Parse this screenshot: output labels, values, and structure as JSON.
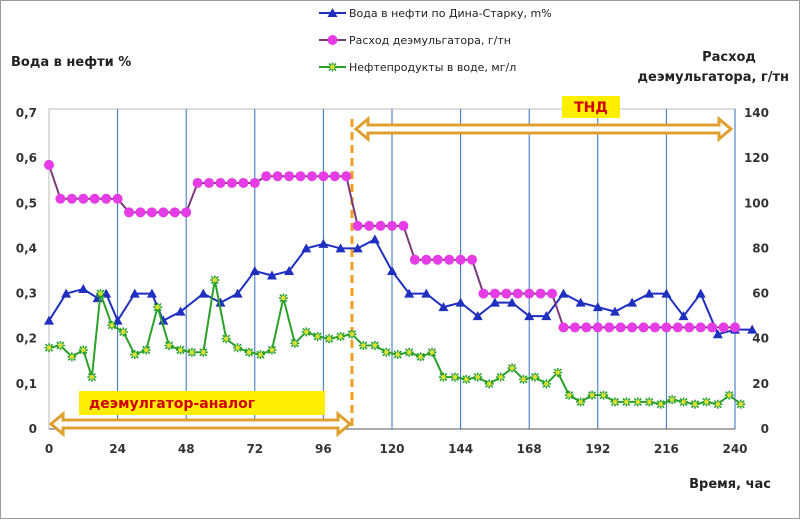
{
  "chart_data": {
    "type": "line",
    "xlabel": "Время, час",
    "ylabel_left": "Вода в нефти  %",
    "ylabel_right": [
      "Расход",
      "деэмульгатора, г/тн"
    ],
    "x_ticks": [
      0,
      24,
      48,
      72,
      96,
      120,
      144,
      168,
      192,
      216,
      240
    ],
    "y_left_ticks": [
      "0",
      "0,1",
      "0,2",
      "0,3",
      "0,4",
      "0,5",
      "0,6",
      "0,7"
    ],
    "y_right_ticks": [
      "0",
      "20",
      "40",
      "60",
      "80",
      "100",
      "120",
      "140"
    ],
    "xlim": [
      0,
      240
    ],
    "ylim_left": [
      0,
      0.7
    ],
    "ylim_right": [
      0,
      140
    ],
    "grid": "vertical",
    "legend_position": "top-center",
    "series": [
      {
        "name": "Вода в нефти по Дина-Старку, m%",
        "axis": "left",
        "color": "#1f2fbf",
        "marker": "triangle",
        "points": [
          [
            0,
            0.24
          ],
          [
            6,
            0.3
          ],
          [
            12,
            0.31
          ],
          [
            17,
            0.29
          ],
          [
            20,
            0.3
          ],
          [
            24,
            0.24
          ],
          [
            30,
            0.3
          ],
          [
            36,
            0.3
          ],
          [
            40,
            0.24
          ],
          [
            46,
            0.26
          ],
          [
            54,
            0.3
          ],
          [
            60,
            0.28
          ],
          [
            66,
            0.3
          ],
          [
            72,
            0.35
          ],
          [
            78,
            0.34
          ],
          [
            84,
            0.35
          ],
          [
            90,
            0.4
          ],
          [
            96,
            0.41
          ],
          [
            102,
            0.4
          ],
          [
            108,
            0.4
          ],
          [
            114,
            0.42
          ],
          [
            120,
            0.35
          ],
          [
            126,
            0.3
          ],
          [
            132,
            0.3
          ],
          [
            138,
            0.27
          ],
          [
            144,
            0.28
          ],
          [
            150,
            0.25
          ],
          [
            156,
            0.28
          ],
          [
            162,
            0.28
          ],
          [
            168,
            0.25
          ],
          [
            174,
            0.25
          ],
          [
            180,
            0.3
          ],
          [
            186,
            0.28
          ],
          [
            192,
            0.27
          ],
          [
            198,
            0.26
          ],
          [
            204,
            0.28
          ],
          [
            210,
            0.3
          ],
          [
            216,
            0.3
          ],
          [
            222,
            0.25
          ],
          [
            228,
            0.3
          ],
          [
            234,
            0.21
          ],
          [
            240,
            0.22
          ],
          [
            246,
            0.22
          ]
        ]
      },
      {
        "name": "Расход деэмульгатора, г/тн",
        "axis": "right",
        "color": "#7a3a7a",
        "marker_color": "#e63ce6",
        "marker": "circle",
        "points": [
          [
            0,
            117
          ],
          [
            4,
            102
          ],
          [
            8,
            102
          ],
          [
            12,
            102
          ],
          [
            16,
            102
          ],
          [
            20,
            102
          ],
          [
            24,
            102
          ],
          [
            28,
            96
          ],
          [
            32,
            96
          ],
          [
            36,
            96
          ],
          [
            40,
            96
          ],
          [
            44,
            96
          ],
          [
            48,
            96
          ],
          [
            52,
            109
          ],
          [
            56,
            109
          ],
          [
            60,
            109
          ],
          [
            64,
            109
          ],
          [
            68,
            109
          ],
          [
            72,
            109
          ],
          [
            76,
            112
          ],
          [
            80,
            112
          ],
          [
            84,
            112
          ],
          [
            88,
            112
          ],
          [
            92,
            112
          ],
          [
            96,
            112
          ],
          [
            100,
            112
          ],
          [
            104,
            112
          ],
          [
            108,
            90
          ],
          [
            112,
            90
          ],
          [
            116,
            90
          ],
          [
            120,
            90
          ],
          [
            124,
            90
          ],
          [
            128,
            75
          ],
          [
            132,
            75
          ],
          [
            136,
            75
          ],
          [
            140,
            75
          ],
          [
            144,
            75
          ],
          [
            148,
            75
          ],
          [
            152,
            60
          ],
          [
            156,
            60
          ],
          [
            160,
            60
          ],
          [
            164,
            60
          ],
          [
            168,
            60
          ],
          [
            172,
            60
          ],
          [
            176,
            60
          ],
          [
            180,
            45
          ],
          [
            184,
            45
          ],
          [
            188,
            45
          ],
          [
            192,
            45
          ],
          [
            196,
            45
          ],
          [
            200,
            45
          ],
          [
            204,
            45
          ],
          [
            208,
            45
          ],
          [
            212,
            45
          ],
          [
            216,
            45
          ],
          [
            220,
            45
          ],
          [
            224,
            45
          ],
          [
            228,
            45
          ],
          [
            232,
            45
          ],
          [
            236,
            45
          ],
          [
            240,
            45
          ]
        ]
      },
      {
        "name": "Нефтепродукты в воде, мг/л",
        "axis": "right",
        "color": "#2aa02a",
        "marker_color": "#e0e030",
        "marker": "star",
        "points": [
          [
            0,
            36
          ],
          [
            4,
            37
          ],
          [
            8,
            32
          ],
          [
            12,
            35
          ],
          [
            15,
            23
          ],
          [
            18,
            60
          ],
          [
            22,
            46
          ],
          [
            26,
            43
          ],
          [
            30,
            33
          ],
          [
            34,
            35
          ],
          [
            38,
            54
          ],
          [
            42,
            37
          ],
          [
            46,
            35
          ],
          [
            50,
            34
          ],
          [
            54,
            34
          ],
          [
            58,
            66
          ],
          [
            62,
            40
          ],
          [
            66,
            36
          ],
          [
            70,
            34
          ],
          [
            74,
            33
          ],
          [
            78,
            35
          ],
          [
            82,
            58
          ],
          [
            86,
            38
          ],
          [
            90,
            43
          ],
          [
            94,
            41
          ],
          [
            98,
            40
          ],
          [
            102,
            41
          ],
          [
            106,
            42
          ],
          [
            110,
            37
          ],
          [
            114,
            37
          ],
          [
            118,
            34
          ],
          [
            122,
            33
          ],
          [
            126,
            34
          ],
          [
            130,
            32
          ],
          [
            134,
            34
          ],
          [
            138,
            23
          ],
          [
            142,
            23
          ],
          [
            146,
            22
          ],
          [
            150,
            23
          ],
          [
            154,
            20
          ],
          [
            158,
            23
          ],
          [
            162,
            27
          ],
          [
            166,
            22
          ],
          [
            170,
            23
          ],
          [
            174,
            20
          ],
          [
            178,
            25
          ],
          [
            182,
            15
          ],
          [
            186,
            12
          ],
          [
            190,
            15
          ],
          [
            194,
            15
          ],
          [
            198,
            12
          ],
          [
            202,
            12
          ],
          [
            206,
            12
          ],
          [
            210,
            12
          ],
          [
            214,
            11
          ],
          [
            218,
            13
          ],
          [
            222,
            12
          ],
          [
            226,
            11
          ],
          [
            230,
            12
          ],
          [
            234,
            11
          ],
          [
            238,
            15
          ],
          [
            242,
            11
          ]
        ]
      }
    ],
    "annotations": [
      {
        "text": "ТНД",
        "range": [
          106,
          240
        ]
      },
      {
        "text": "деэмулгатор-аналог",
        "range": [
          0,
          106
        ]
      }
    ],
    "marker_line_x": 106
  }
}
